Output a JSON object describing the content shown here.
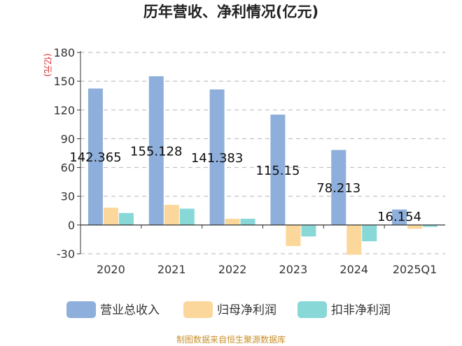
{
  "chart_data": {
    "type": "bar",
    "title": "历年营收、净利情况(亿元)",
    "unit_label": "(亿元)",
    "categories": [
      "2020",
      "2021",
      "2022",
      "2023",
      "2024",
      "2025Q1"
    ],
    "series": [
      {
        "name": "营业总收入",
        "color": "#8eaedb",
        "values": [
          142.365,
          155.128,
          141.383,
          115.15,
          78.213,
          16.154
        ]
      },
      {
        "name": "归母净利润",
        "color": "#fcd79b",
        "values": [
          18,
          21,
          6.5,
          -22,
          -31,
          -4
        ]
      },
      {
        "name": "扣非净利润",
        "color": "#88d8d8",
        "values": [
          12.5,
          17,
          6.5,
          -12,
          -17,
          -2
        ]
      }
    ],
    "data_labels": [
      "142.365",
      "155.128",
      "141.383",
      "115.15",
      "78.213",
      "16.154"
    ],
    "ylim": [
      -30,
      180
    ],
    "yticks": [
      -30,
      0,
      30,
      60,
      90,
      120,
      150,
      180
    ],
    "grid": true,
    "legend_position": "bottom"
  },
  "footer": {
    "source": "制图数据来自恒生聚源数据库"
  }
}
